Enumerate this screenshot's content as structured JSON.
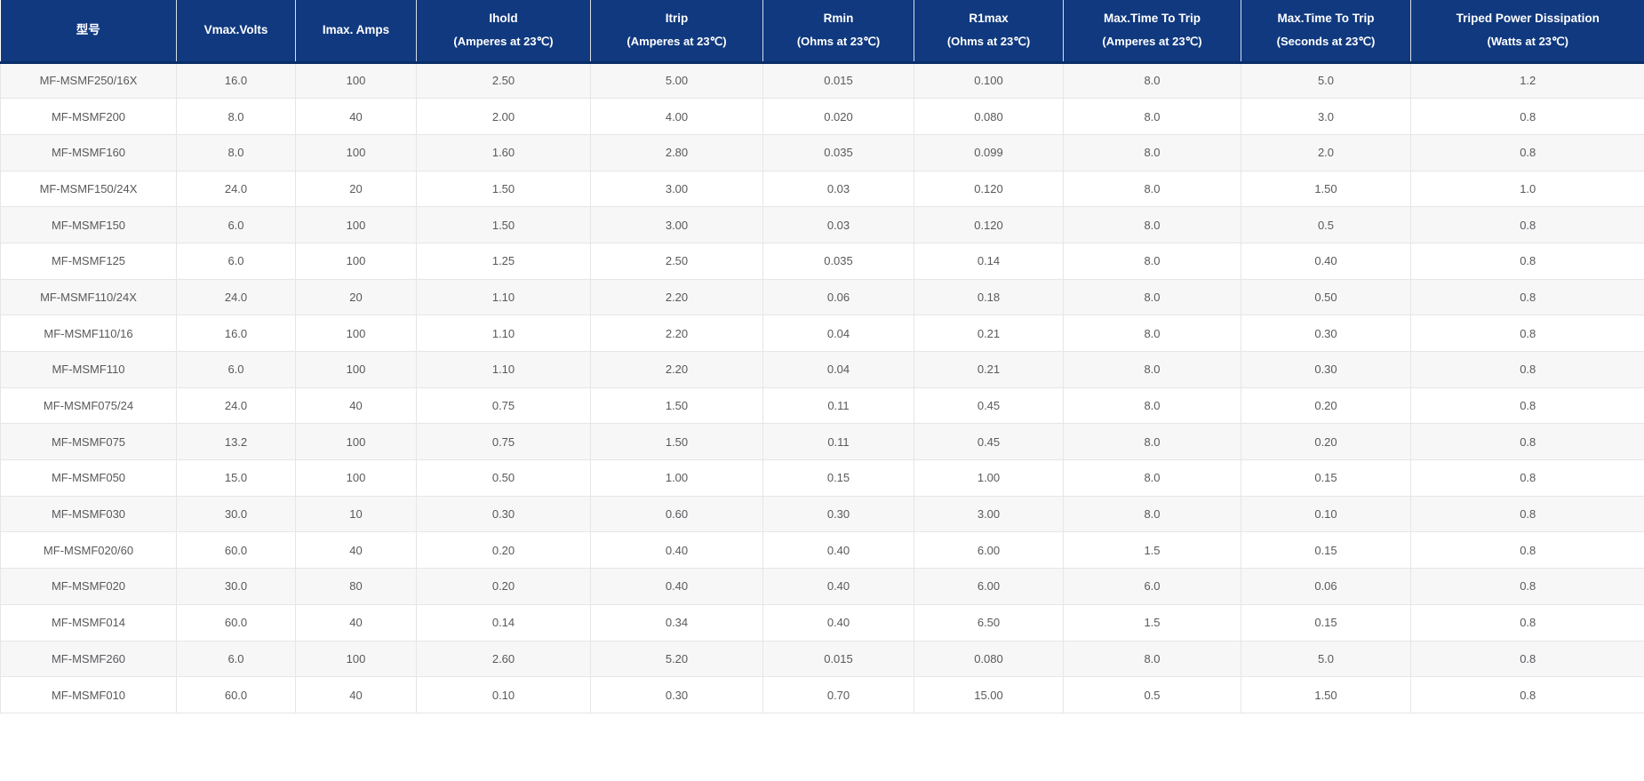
{
  "colors": {
    "header_bg": "#10397f",
    "header_text": "#ffffff",
    "header_divider": "#d9dde6",
    "header_bottom_border": "#0a2e68",
    "body_text": "#58595b",
    "row_bg": "#ffffff",
    "row_alt_bg": "#f7f7f8",
    "grid_border": "#e5e6e8"
  },
  "table": {
    "columns": [
      {
        "title": "型号",
        "sub": ""
      },
      {
        "title": "Vmax.Volts",
        "sub": ""
      },
      {
        "title": "Imax. Amps",
        "sub": ""
      },
      {
        "title": "Ihold",
        "sub": "(Amperes at 23℃)"
      },
      {
        "title": "Itrip",
        "sub": "(Amperes at 23℃)"
      },
      {
        "title": "Rmin",
        "sub": "(Ohms at 23℃)"
      },
      {
        "title": "R1max",
        "sub": "(Ohms at 23℃)"
      },
      {
        "title": "Max.Time To Trip",
        "sub": "(Amperes at 23℃)"
      },
      {
        "title": "Max.Time To Trip",
        "sub": "(Seconds at 23℃)"
      },
      {
        "title": "Triped Power Dissipation",
        "sub": "(Watts at 23℃)"
      }
    ],
    "rows": [
      [
        "MF-MSMF250/16X",
        "16.0",
        "100",
        "2.50",
        "5.00",
        "0.015",
        "0.100",
        "8.0",
        "5.0",
        "1.2"
      ],
      [
        "MF-MSMF200",
        "8.0",
        "40",
        "2.00",
        "4.00",
        "0.020",
        "0.080",
        "8.0",
        "3.0",
        "0.8"
      ],
      [
        "MF-MSMF160",
        "8.0",
        "100",
        "1.60",
        "2.80",
        "0.035",
        "0.099",
        "8.0",
        "2.0",
        "0.8"
      ],
      [
        "MF-MSMF150/24X",
        "24.0",
        "20",
        "1.50",
        "3.00",
        "0.03",
        "0.120",
        "8.0",
        "1.50",
        "1.0"
      ],
      [
        "MF-MSMF150",
        "6.0",
        "100",
        "1.50",
        "3.00",
        "0.03",
        "0.120",
        "8.0",
        "0.5",
        "0.8"
      ],
      [
        "MF-MSMF125",
        "6.0",
        "100",
        "1.25",
        "2.50",
        "0.035",
        "0.14",
        "8.0",
        "0.40",
        "0.8"
      ],
      [
        "MF-MSMF110/24X",
        "24.0",
        "20",
        "1.10",
        "2.20",
        "0.06",
        "0.18",
        "8.0",
        "0.50",
        "0.8"
      ],
      [
        "MF-MSMF110/16",
        "16.0",
        "100",
        "1.10",
        "2.20",
        "0.04",
        "0.21",
        "8.0",
        "0.30",
        "0.8"
      ],
      [
        "MF-MSMF110",
        "6.0",
        "100",
        "1.10",
        "2.20",
        "0.04",
        "0.21",
        "8.0",
        "0.30",
        "0.8"
      ],
      [
        "MF-MSMF075/24",
        "24.0",
        "40",
        "0.75",
        "1.50",
        "0.11",
        "0.45",
        "8.0",
        "0.20",
        "0.8"
      ],
      [
        "MF-MSMF075",
        "13.2",
        "100",
        "0.75",
        "1.50",
        "0.11",
        "0.45",
        "8.0",
        "0.20",
        "0.8"
      ],
      [
        "MF-MSMF050",
        "15.0",
        "100",
        "0.50",
        "1.00",
        "0.15",
        "1.00",
        "8.0",
        "0.15",
        "0.8"
      ],
      [
        "MF-MSMF030",
        "30.0",
        "10",
        "0.30",
        "0.60",
        "0.30",
        "3.00",
        "8.0",
        "0.10",
        "0.8"
      ],
      [
        "MF-MSMF020/60",
        "60.0",
        "40",
        "0.20",
        "0.40",
        "0.40",
        "6.00",
        "1.5",
        "0.15",
        "0.8"
      ],
      [
        "MF-MSMF020",
        "30.0",
        "80",
        "0.20",
        "0.40",
        "0.40",
        "6.00",
        "6.0",
        "0.06",
        "0.8"
      ],
      [
        "MF-MSMF014",
        "60.0",
        "40",
        "0.14",
        "0.34",
        "0.40",
        "6.50",
        "1.5",
        "0.15",
        "0.8"
      ],
      [
        "MF-MSMF260",
        "6.0",
        "100",
        "2.60",
        "5.20",
        "0.015",
        "0.080",
        "8.0",
        "5.0",
        "0.8"
      ],
      [
        "MF-MSMF010",
        "60.0",
        "40",
        "0.10",
        "0.30",
        "0.70",
        "15.00",
        "0.5",
        "1.50",
        "0.8"
      ]
    ]
  }
}
